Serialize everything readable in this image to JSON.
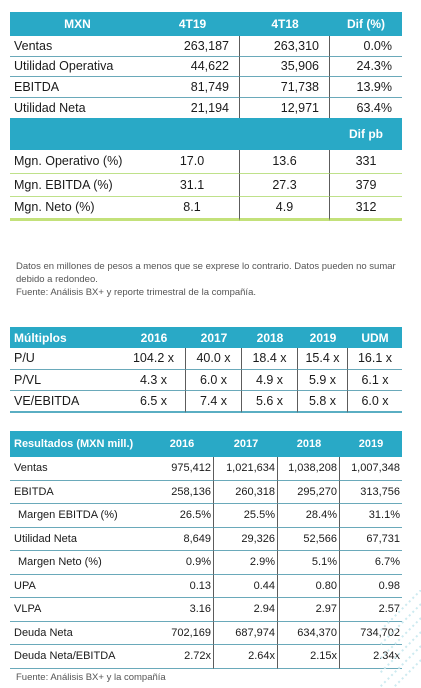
{
  "table1": {
    "headers": [
      "MXN",
      "4T19",
      "4T18",
      "Dif (%)"
    ],
    "rows": [
      {
        "label": "Ventas",
        "v1": "263,187",
        "v2": "263,310",
        "v3": "0.0%"
      },
      {
        "label": "Utilidad Operativa",
        "v1": "44,622",
        "v2": "35,906",
        "v3": "24.3%"
      },
      {
        "label": "EBITDA",
        "v1": "81,749",
        "v2": "71,738",
        "v3": "13.9%"
      },
      {
        "label": "Utilidad Neta",
        "v1": "21,194",
        "v2": "12,971",
        "v3": "63.4%"
      }
    ],
    "band_label": "Dif pb",
    "margins": [
      {
        "label": "Mgn. Operativo (%)",
        "v1": "17.0",
        "v2": "13.6",
        "v3": "331"
      },
      {
        "label": "Mgn. EBITDA (%)",
        "v1": "31.1",
        "v2": "27.3",
        "v3": "379"
      },
      {
        "label": "Mgn. Neto (%)",
        "v1": "8.1",
        "v2": "4.9",
        "v3": "312"
      }
    ]
  },
  "note": {
    "line1": "Datos en millones de pesos a menos que se exprese lo contrario. Datos pueden no sumar debido a redondeo.",
    "line2": "Fuente: Análisis BX+ y reporte trimestral de la compañía."
  },
  "table2": {
    "headers": [
      "Múltiplos",
      "2016",
      "2017",
      "2018",
      "2019",
      "UDM"
    ],
    "rows": [
      {
        "label": "P/U",
        "values": [
          "104.2 x",
          "40.0 x",
          "18.4 x",
          "15.4 x",
          "16.1 x"
        ]
      },
      {
        "label": "P/VL",
        "values": [
          "4.3 x",
          "6.0 x",
          "4.9 x",
          "5.9 x",
          "6.1 x"
        ]
      },
      {
        "label": "VE/EBITDA",
        "values": [
          "6.5 x",
          "7.4 x",
          "5.6 x",
          "5.8 x",
          "6.0 x"
        ]
      }
    ]
  },
  "table3": {
    "headers": [
      "Resultados (MXN mill.)",
      "2016",
      "2017",
      "2018",
      "2019"
    ],
    "rows": [
      {
        "label": "Ventas",
        "values": [
          "975,412",
          "1,021,634",
          "1,038,208",
          "1,007,348"
        ]
      },
      {
        "label": "EBITDA",
        "values": [
          "258,136",
          "260,318",
          "295,270",
          "313,756"
        ]
      },
      {
        "label": "Margen EBITDA (%)",
        "values": [
          "26.5%",
          "25.5%",
          "28.4%",
          "31.1%"
        ]
      },
      {
        "label": "Utilidad Neta",
        "values": [
          "8,649",
          "29,326",
          "52,566",
          "67,731"
        ]
      },
      {
        "label": "Margen Neto (%)",
        "values": [
          "0.9%",
          "2.9%",
          "5.1%",
          "6.7%"
        ]
      },
      {
        "label": "UPA",
        "values": [
          "0.13",
          "0.44",
          "0.80",
          "0.98"
        ]
      },
      {
        "label": "VLPA",
        "values": [
          "3.16",
          "2.94",
          "2.97",
          "2.57"
        ]
      },
      {
        "label": "Deuda Neta",
        "values": [
          "702,169",
          "687,974",
          "634,370",
          "734,702"
        ]
      },
      {
        "label": "Deuda Neta/EBITDA",
        "values": [
          "2.72x",
          "2.64x",
          "2.15x",
          "2.34x"
        ]
      }
    ]
  },
  "footer": "Fuente: Análisis BX+ y la compañía",
  "colors": {
    "header_bg": "#29a9c6",
    "accent_green": "#c3e17a"
  }
}
